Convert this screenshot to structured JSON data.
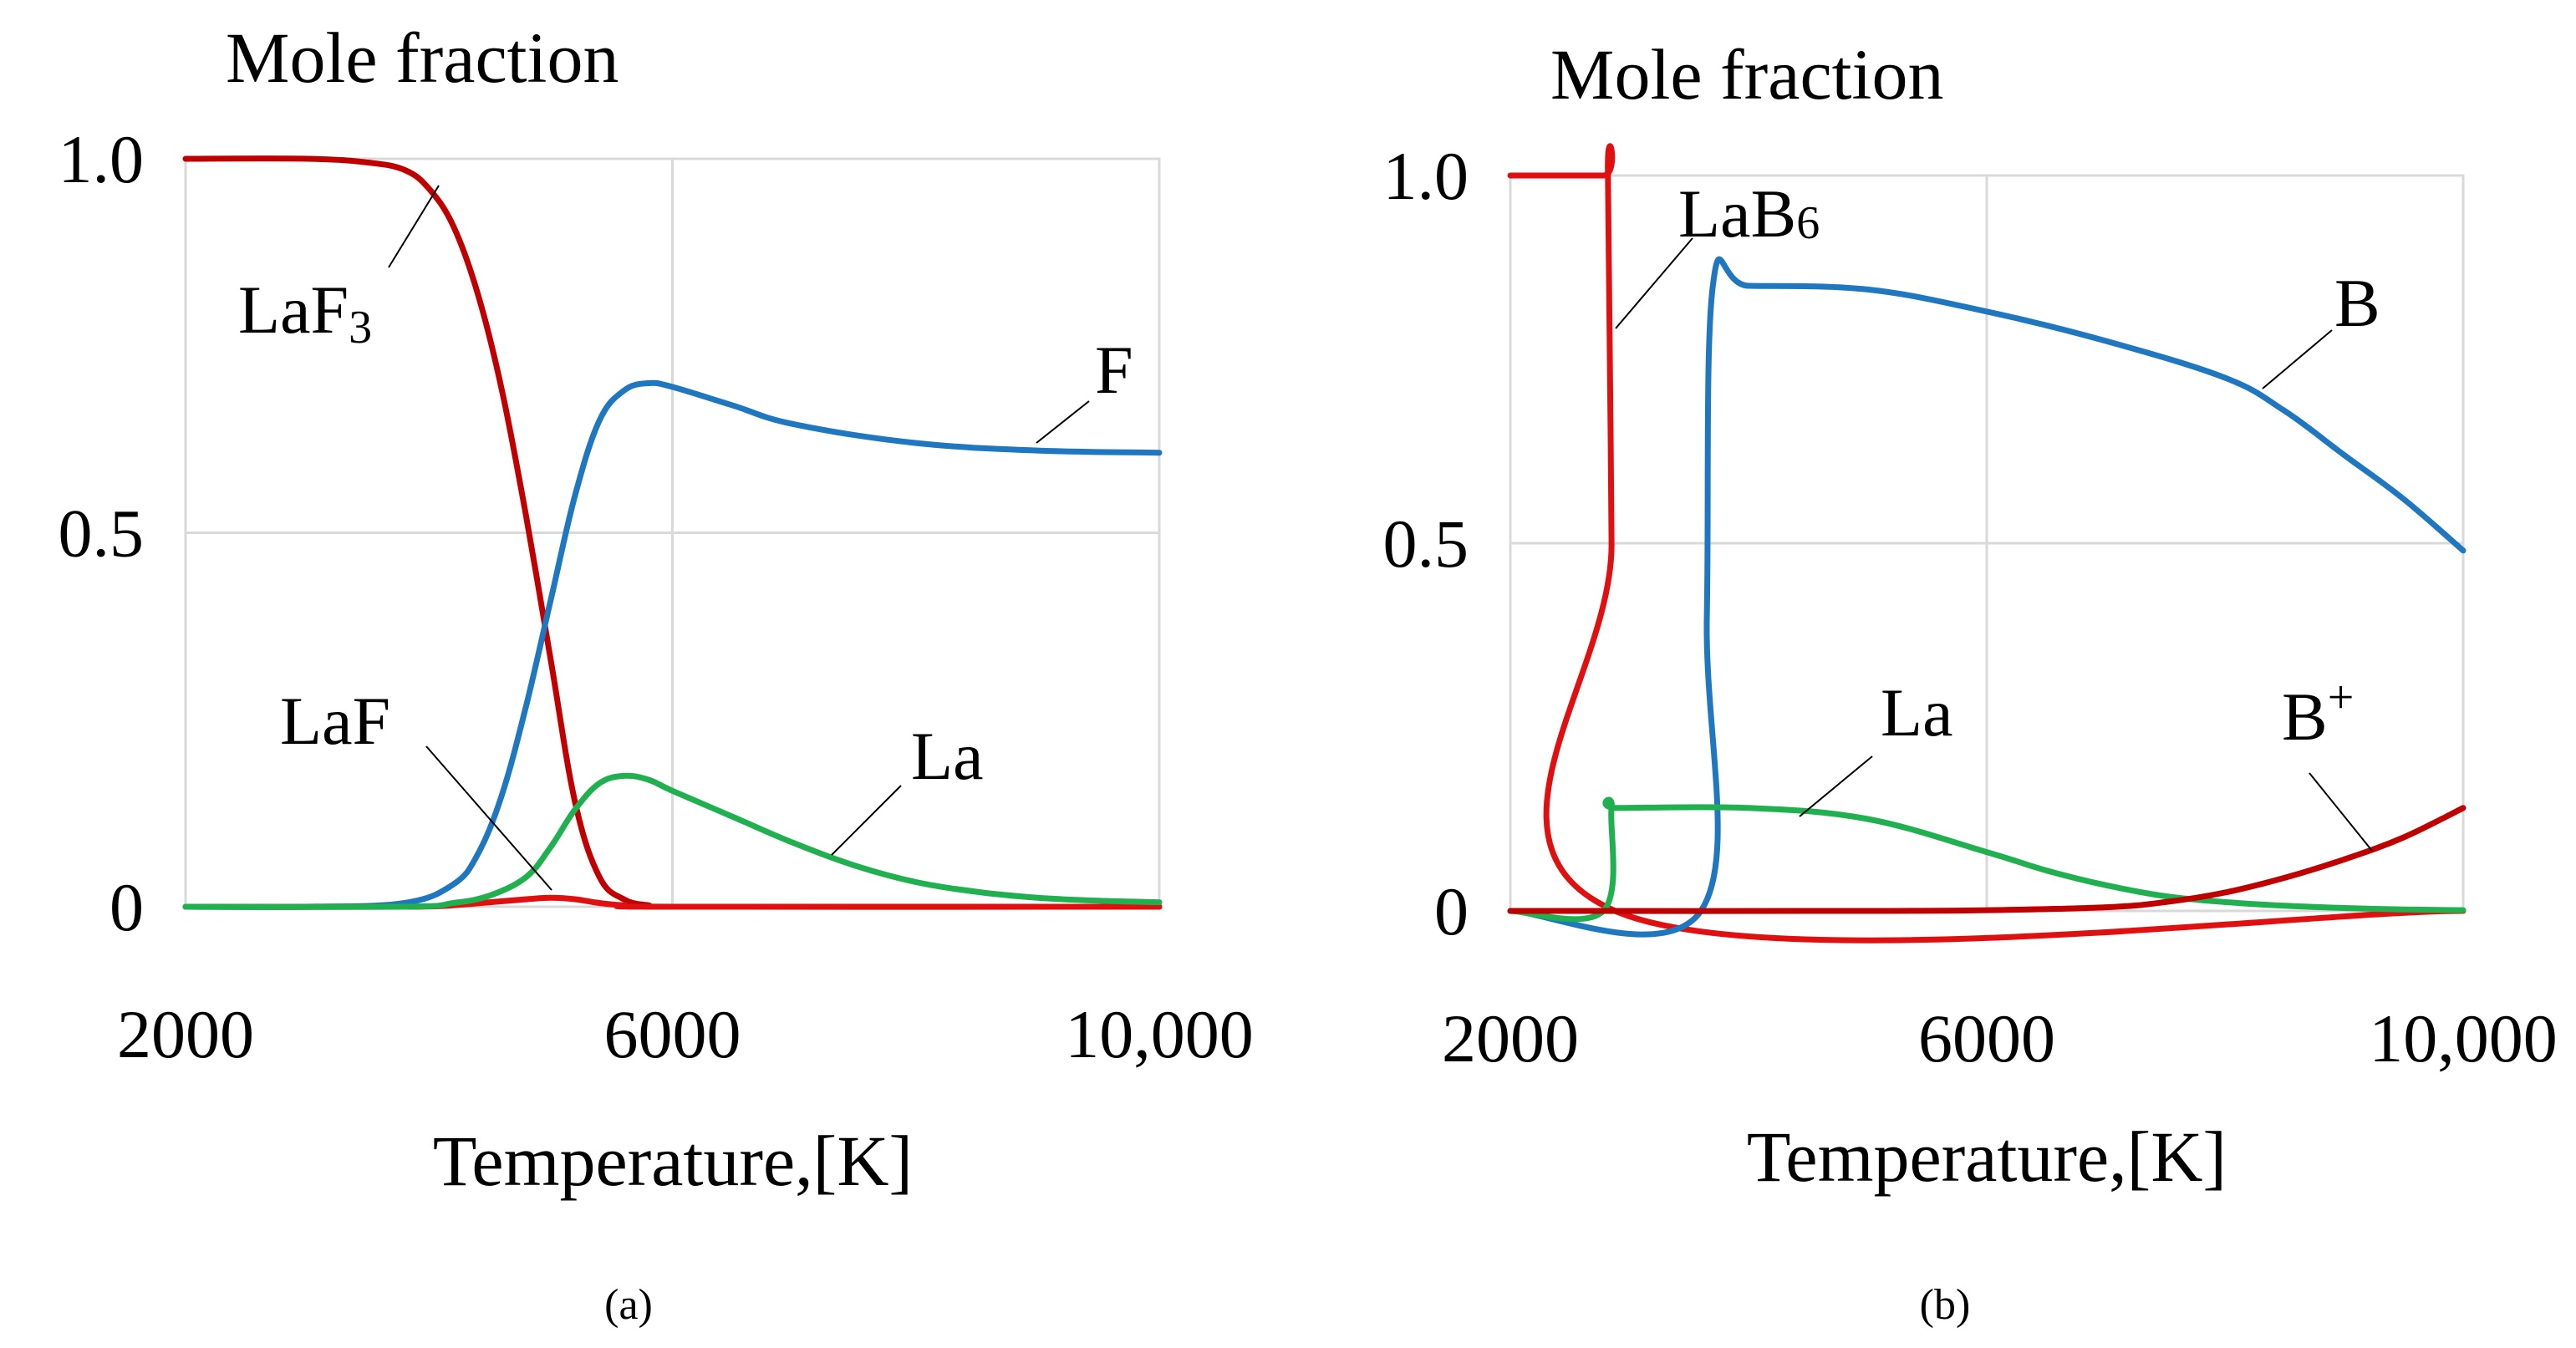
{
  "colors": {
    "blue": "#1f77c0",
    "green": "#20b04f",
    "red": "#e01010",
    "darkred": "#c00000"
  },
  "chart_data": [
    {
      "type": "line",
      "panel_label": "(a)",
      "title": "Mole fraction",
      "xlabel": "Temperature,[K]",
      "ylabel": "",
      "xlim": [
        2000,
        10000
      ],
      "ylim": [
        0,
        1
      ],
      "xticks": [
        "2000",
        "6000",
        "10,000"
      ],
      "yticks": [
        "0",
        "0.5",
        "1.0"
      ],
      "grid": true,
      "series": [
        {
          "name": "LaF3",
          "label_main": "LaF",
          "label_sub": "3",
          "color": "#c00000",
          "x": [
            2000,
            3000,
            3500,
            3800,
            4000,
            4200,
            4400,
            4600,
            4800,
            5000,
            5200,
            5400,
            5600,
            5800,
            6000,
            8000,
            10000
          ],
          "y": [
            1.0,
            1.0,
            0.995,
            0.985,
            0.96,
            0.91,
            0.82,
            0.69,
            0.52,
            0.33,
            0.14,
            0.04,
            0.01,
            0.002,
            0,
            0,
            0
          ]
        },
        {
          "name": "F",
          "label_main": "F",
          "label_sub": "",
          "color": "#1f77c0",
          "x": [
            2000,
            3000,
            3800,
            4200,
            4400,
            4600,
            4800,
            5000,
            5200,
            5400,
            5600,
            5800,
            6000,
            6500,
            7000,
            8000,
            9000,
            10000
          ],
          "y": [
            0,
            0,
            0.005,
            0.03,
            0.07,
            0.15,
            0.27,
            0.41,
            0.55,
            0.65,
            0.69,
            0.7,
            0.695,
            0.67,
            0.645,
            0.62,
            0.61,
            0.607
          ]
        },
        {
          "name": "LaF",
          "label_main": "LaF",
          "label_sub": "",
          "color": "#e01010",
          "x": [
            2000,
            3800,
            4200,
            4500,
            4800,
            5000,
            5200,
            5400,
            5600,
            6000,
            10000
          ],
          "y": [
            0,
            0,
            0.002,
            0.006,
            0.01,
            0.012,
            0.01,
            0.005,
            0.002,
            0,
            0
          ]
        },
        {
          "name": "La",
          "label_main": "La",
          "label_sub": "",
          "color": "#20b04f",
          "x": [
            2000,
            3800,
            4200,
            4500,
            4800,
            5000,
            5200,
            5400,
            5600,
            5800,
            6000,
            6500,
            7000,
            7500,
            8000,
            8500,
            9000,
            9500,
            10000
          ],
          "y": [
            0,
            0,
            0.005,
            0.015,
            0.04,
            0.08,
            0.13,
            0.165,
            0.175,
            0.17,
            0.155,
            0.12,
            0.085,
            0.055,
            0.033,
            0.02,
            0.012,
            0.008,
            0.006
          ]
        }
      ]
    },
    {
      "type": "line",
      "panel_label": "(b)",
      "title": "Mole fraction",
      "xlabel": "Temperature,[K]",
      "ylabel": "",
      "xlim": [
        2000,
        10000
      ],
      "ylim": [
        0,
        1
      ],
      "xticks": [
        "2000",
        "6000",
        "10,000"
      ],
      "yticks": [
        "0",
        "0.5",
        "1.0"
      ],
      "grid": true,
      "series": [
        {
          "name": "LaB6",
          "label_main": "LaB",
          "label_sub": "6",
          "color": "#e01010",
          "x": [
            2000,
            2780,
            2820,
            2850,
            2880,
            10000
          ],
          "y": [
            1.0,
            1.0,
            1.0,
            0.5,
            0,
            0
          ]
        },
        {
          "name": "B",
          "label_main": "B",
          "label_sub": "",
          "color": "#1f77c0",
          "x": [
            2000,
            3600,
            3650,
            3700,
            4000,
            5000,
            6000,
            7000,
            8000,
            8500,
            9000,
            9500,
            10000
          ],
          "y": [
            0,
            0,
            0.4,
            0.85,
            0.85,
            0.845,
            0.815,
            0.775,
            0.725,
            0.68,
            0.62,
            0.56,
            0.49
          ]
        },
        {
          "name": "La",
          "label_main": "La",
          "label_sub": "",
          "color": "#20b04f",
          "x": [
            2000,
            2780,
            2850,
            2900,
            4000,
            5000,
            6000,
            6500,
            7000,
            7500,
            8000,
            8500,
            9000,
            9500,
            10000
          ],
          "y": [
            0,
            0,
            0.14,
            0.14,
            0.14,
            0.125,
            0.08,
            0.055,
            0.035,
            0.02,
            0.012,
            0.007,
            0.004,
            0.002,
            0.001
          ]
        },
        {
          "name": "B+",
          "label_main": "B",
          "label_sup": "+",
          "label_sub": "",
          "color": "#c00000",
          "x": [
            2000,
            5000,
            6000,
            7000,
            7500,
            8000,
            8500,
            9000,
            9500,
            10000
          ],
          "y": [
            0,
            0,
            0.001,
            0.005,
            0.012,
            0.025,
            0.045,
            0.07,
            0.1,
            0.14
          ]
        }
      ]
    }
  ]
}
